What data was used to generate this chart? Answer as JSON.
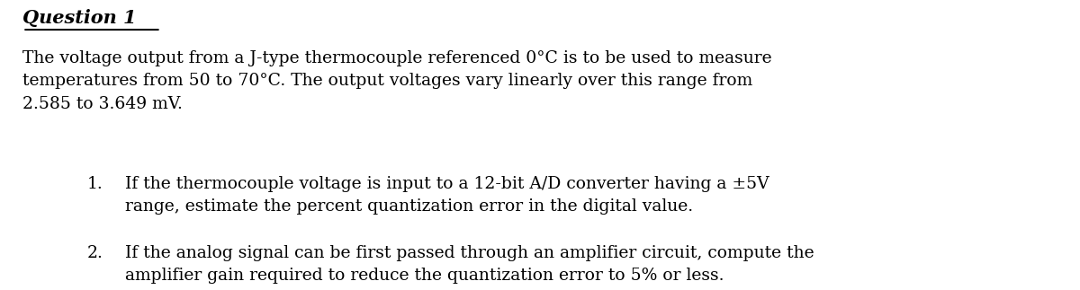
{
  "title": "Question 1",
  "background_color": "#ffffff",
  "text_color": "#000000",
  "paragraph": "The voltage output from a J-type thermocouple referenced 0°C is to be used to measure\ntemperatures from 50 to 70°C. The output voltages vary linearly over this range from\n2.585 to 3.649 mV.",
  "item1_line1": "If the thermocouple voltage is input to a 12-bit A/D converter having a ±5V",
  "item1_line2": "range, estimate the percent quantization error in the digital value.",
  "item2_line1": "If the analog signal can be first passed through an amplifier circuit, compute the",
  "item2_line2": "amplifier gain required to reduce the quantization error to 5% or less.",
  "title_fontsize": 15,
  "body_fontsize": 13.5,
  "fig_width": 12.0,
  "fig_height": 3.23,
  "dpi": 100
}
